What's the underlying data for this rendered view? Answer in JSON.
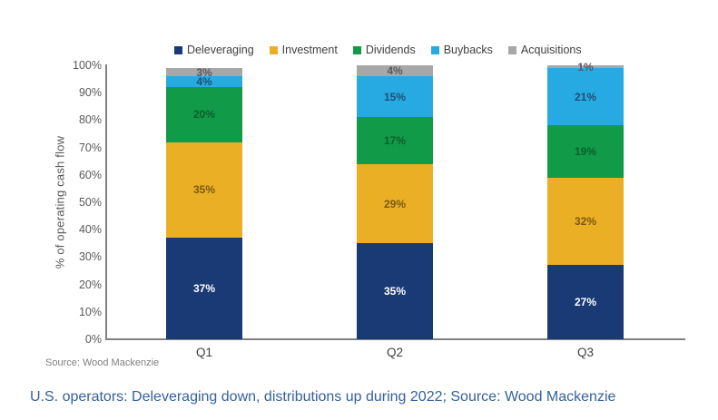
{
  "chart_data": {
    "type": "bar",
    "stacked": true,
    "title": "",
    "categories": [
      "Q1",
      "Q2",
      "Q3"
    ],
    "series": [
      {
        "name": "Deleveraging",
        "color": "#1a3a76",
        "label_color": "#ffffff",
        "values": [
          37,
          35,
          27
        ]
      },
      {
        "name": "Investment",
        "color": "#eaaf25",
        "label_color": "#7a5a10",
        "values": [
          35,
          29,
          32
        ]
      },
      {
        "name": "Dividends",
        "color": "#119b48",
        "label_color": "#0b5e2d",
        "values": [
          20,
          17,
          19
        ]
      },
      {
        "name": "Buybacks",
        "color": "#27aae1",
        "label_color": "#1f4e79",
        "values": [
          4,
          15,
          21
        ]
      },
      {
        "name": "Acquisitions",
        "color": "#a7a7a7",
        "label_color": "#595959",
        "values": [
          3,
          4,
          1
        ]
      }
    ],
    "xlabel": "",
    "ylabel": "% of operating cash flow",
    "ylim": [
      0,
      100
    ],
    "y_ticks": [
      "100%",
      "90%",
      "80%",
      "70%",
      "60%",
      "50%",
      "40%",
      "30%",
      "20%",
      "10%",
      "0%"
    ],
    "grid": false,
    "legend_position": "top",
    "axis_color": "#808080"
  },
  "source_note": "Source: Wood Mackenzie",
  "caption": "U.S. operators: Deleveraging down, distributions up during 2022; Source: Wood Mackenzie"
}
